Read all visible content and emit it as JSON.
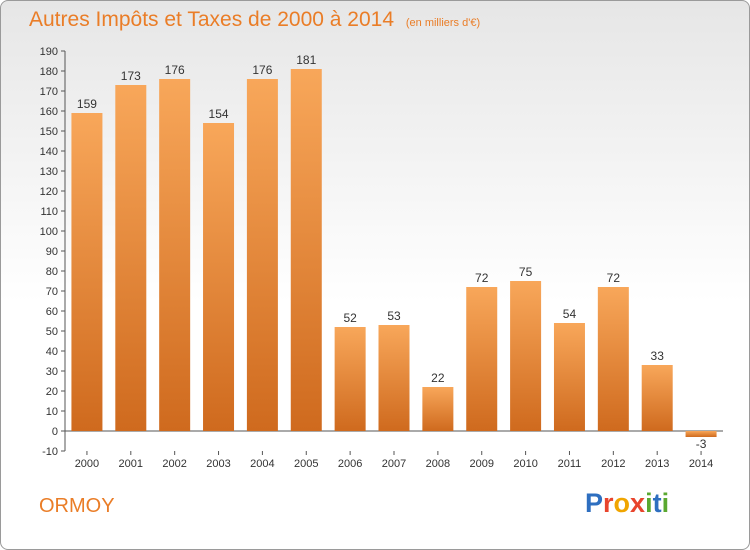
{
  "title": "Autres Impôts et Taxes de 2000 à 2014",
  "title_unit": "(en milliers d'€)",
  "commune": "ORMOY",
  "brand": {
    "text": "Proxiti",
    "letter_colors": [
      "#2e6fc0",
      "#e8442c",
      "#f0a500",
      "#e8442c",
      "#5aa830",
      "#2e6fc0",
      "#5aa830"
    ]
  },
  "colors": {
    "title": "#ea7d27",
    "bar_light": "#f8a75a",
    "bar_dark": "#cf6a1e",
    "axis": "#555555",
    "grid": "#d2d2d2"
  },
  "chart_data": {
    "type": "bar",
    "title": "Autres Impôts et Taxes de 2000 à 2014",
    "subtitle": "(en milliers d'€)",
    "xlabel": "",
    "ylabel": "",
    "categories": [
      "2000",
      "2001",
      "2002",
      "2003",
      "2004",
      "2005",
      "2006",
      "2007",
      "2008",
      "2009",
      "2010",
      "2011",
      "2012",
      "2013",
      "2014"
    ],
    "values": [
      159,
      173,
      176,
      154,
      176,
      181,
      52,
      53,
      22,
      72,
      75,
      54,
      72,
      33,
      -3
    ],
    "ylim": [
      -10,
      190
    ],
    "ytick_step": 10,
    "grid": false,
    "legend": "none"
  }
}
